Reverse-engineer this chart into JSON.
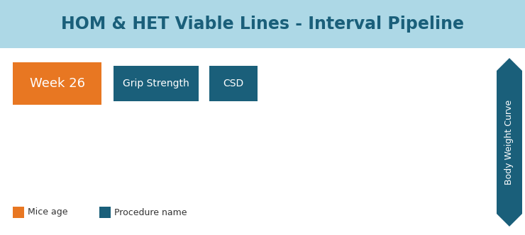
{
  "title": "HOM & HET Viable Lines - Interval Pipeline",
  "title_bg_color": "#add8e6",
  "title_text_color": "#1a5f7a",
  "title_fontsize": 17,
  "week_label": "Week 26",
  "week_bg_color": "#e87722",
  "week_text_color": "#ffffff",
  "week_fontsize": 13,
  "procedures": [
    "Grip Strength",
    "CSD"
  ],
  "procedure_bg_color": "#1a5f7a",
  "procedure_text_color": "#ffffff",
  "procedure_fontsize": 10,
  "arrow_label": "Body Weight Curve",
  "arrow_color": "#1a5f7a",
  "arrow_text_color": "#ffffff",
  "arrow_fontsize": 9,
  "legend_items": [
    {
      "label": "Mice age",
      "color": "#e87722"
    },
    {
      "label": "Procedure name",
      "color": "#1a5f7a"
    }
  ],
  "legend_fontsize": 9,
  "bg_color": "#ffffff",
  "fig_width": 7.4,
  "fig_height": 3.32,
  "dpi": 100
}
